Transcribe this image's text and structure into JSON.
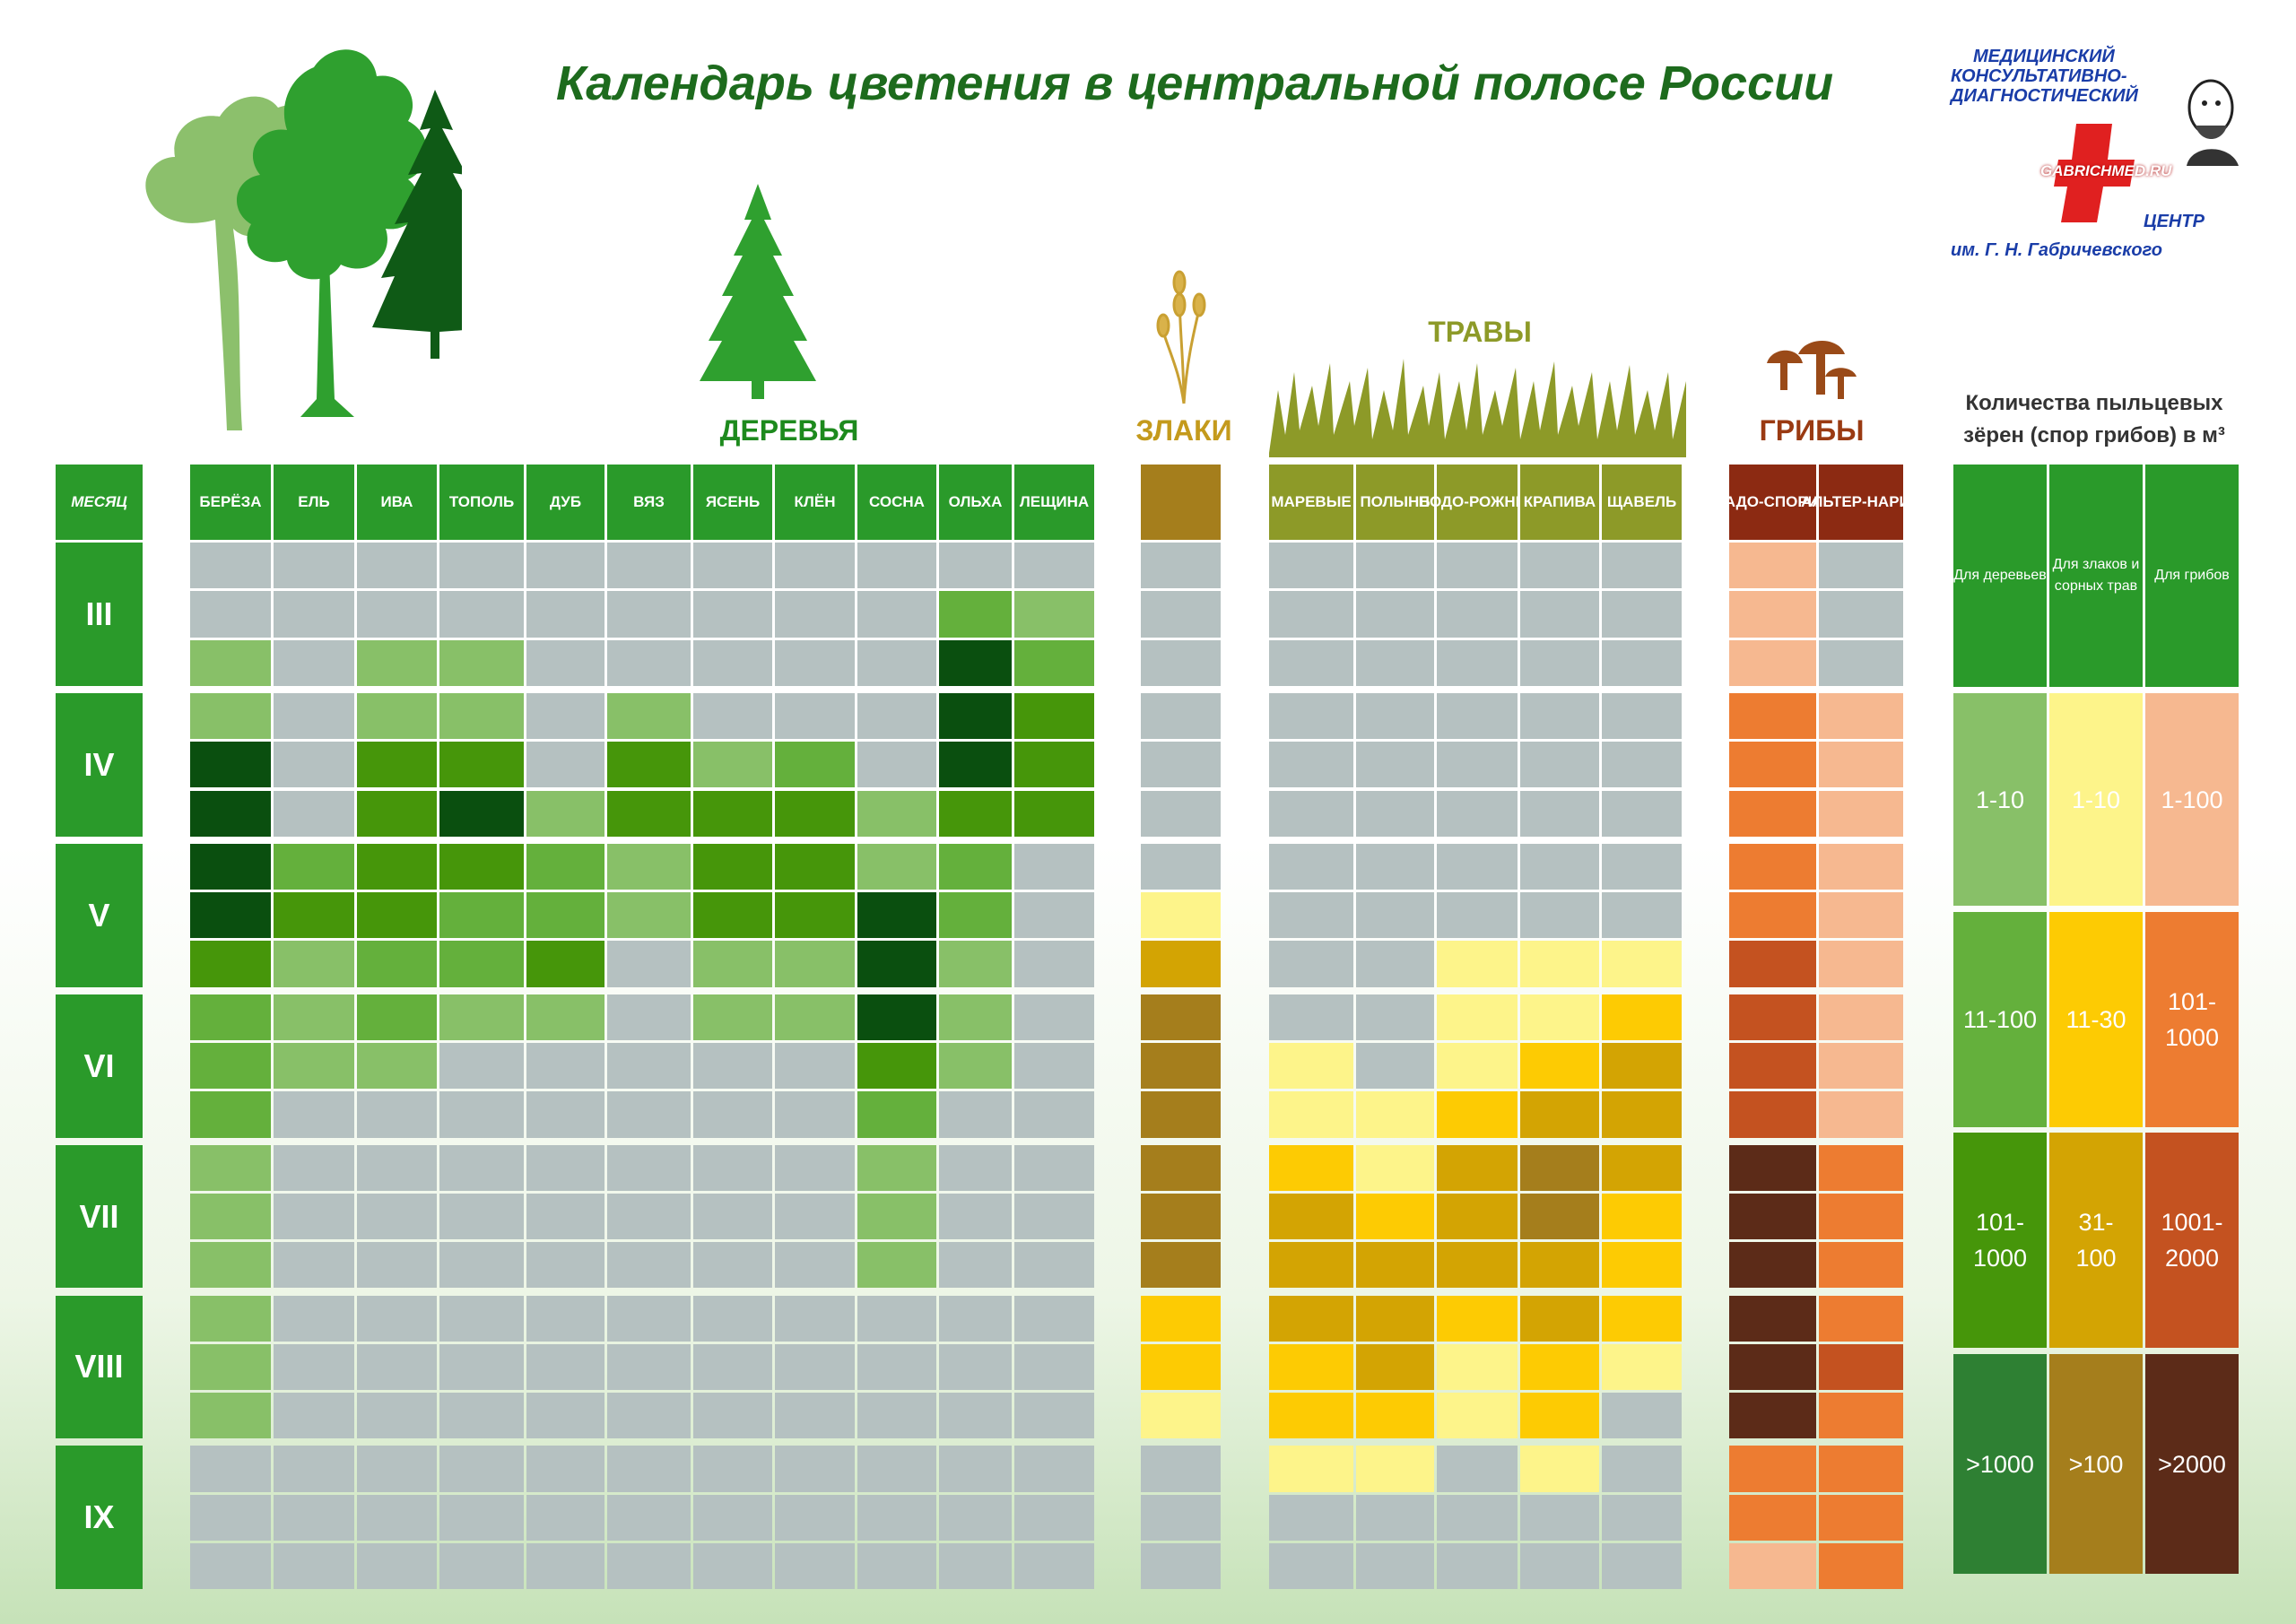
{
  "title": "Календарь цветения в центральной полосе России",
  "logo": {
    "line1": "МЕДИЦИНСКИЙ",
    "line2": "КОНСУЛЬТАТИВНО-",
    "line3": "ДИАГНОСТИЧЕСКИЙ",
    "site": "GABRICHMED.RU",
    "line4": "ЦЕНТР",
    "line5": "им. Г. Н. Габричевского"
  },
  "groups": {
    "trees": "ДЕРЕВЬЯ",
    "cereals": "ЗЛАКИ",
    "grasses": "ТРАВЫ",
    "fungi": "ГРИБЫ"
  },
  "month_header": "МЕСЯЦ",
  "months": [
    "III",
    "IV",
    "V",
    "VI",
    "VII",
    "VIII",
    "IX"
  ],
  "legend": {
    "title_line1": "Количества пыльцевых",
    "title_line2": "зёрен (спор грибов) в м³",
    "headers": [
      "Для деревьев",
      "Для злаков и сорных трав",
      "Для грибов"
    ],
    "rows": [
      [
        "1-10",
        "1-10",
        "1-100"
      ],
      [
        "11-100",
        "11-30",
        "101-\n1000"
      ],
      [
        "101-\n1000",
        "31-\n100",
        "1001-\n2000"
      ],
      [
        ">1000",
        ">100",
        ">2000"
      ]
    ]
  },
  "colors": {
    "none": "#b5c1c1",
    "tree": [
      "#b5c1c1",
      "#88c068",
      "#64b03c",
      "#46960a",
      "#0a4f0f"
    ],
    "herb": [
      "#b5c1c1",
      "#fdf48a",
      "#fdcb03",
      "#d3a403",
      "#a57e1c"
    ],
    "fungus": [
      "#b5c1c1",
      "#f6b890",
      "#ed7c31",
      "#c45220",
      "#5c2b18"
    ],
    "legend_tree": [
      "#88c068",
      "#64b03c",
      "#46960a",
      "#2e8033"
    ],
    "legend_herb": [
      "#fdf48a",
      "#fdcb03",
      "#d3a403",
      "#a57e1c"
    ],
    "legend_fungus": [
      "#f6b890",
      "#ed7c31",
      "#c45220",
      "#5c2b18"
    ],
    "header_green": "#2a9a2a",
    "header_cereal": "#a57e1c",
    "header_grass": "#8d9a28",
    "header_fungus": "#8c2a12",
    "title": "#1d6b1d"
  },
  "chart_data": {
    "type": "heatmap",
    "title": "Календарь цветения в центральной полосе России",
    "x_axis": "periods (3 per month)",
    "months": [
      "III",
      "IV",
      "V",
      "VI",
      "VII",
      "VIII",
      "IX"
    ],
    "levels_note": "0 = none; 1..4 = concentration class per legend",
    "series": [
      {
        "group": "trees",
        "name": "БЕРЁЗА",
        "levels": [
          0,
          0,
          1,
          1,
          4,
          4,
          4,
          4,
          3,
          2,
          2,
          2,
          1,
          1,
          1,
          1,
          1,
          1,
          0,
          0,
          0
        ]
      },
      {
        "group": "trees",
        "name": "ЕЛЬ",
        "levels": [
          0,
          0,
          0,
          0,
          0,
          0,
          2,
          3,
          1,
          1,
          1,
          0,
          0,
          0,
          0,
          0,
          0,
          0,
          0,
          0,
          0
        ]
      },
      {
        "group": "trees",
        "name": "ИВА",
        "levels": [
          0,
          0,
          1,
          1,
          3,
          3,
          3,
          3,
          2,
          2,
          1,
          0,
          0,
          0,
          0,
          0,
          0,
          0,
          0,
          0,
          0
        ]
      },
      {
        "group": "trees",
        "name": "ТОПОЛЬ",
        "levels": [
          0,
          0,
          1,
          1,
          3,
          4,
          3,
          2,
          2,
          1,
          0,
          0,
          0,
          0,
          0,
          0,
          0,
          0,
          0,
          0,
          0
        ]
      },
      {
        "group": "trees",
        "name": "ДУБ",
        "levels": [
          0,
          0,
          0,
          0,
          0,
          1,
          2,
          2,
          3,
          1,
          0,
          0,
          0,
          0,
          0,
          0,
          0,
          0,
          0,
          0,
          0
        ]
      },
      {
        "group": "trees",
        "name": "ВЯЗ",
        "levels": [
          0,
          0,
          0,
          1,
          3,
          3,
          1,
          1,
          0,
          0,
          0,
          0,
          0,
          0,
          0,
          0,
          0,
          0,
          0,
          0,
          0
        ]
      },
      {
        "group": "trees",
        "name": "ЯСЕНЬ",
        "levels": [
          0,
          0,
          0,
          0,
          1,
          3,
          3,
          3,
          1,
          1,
          0,
          0,
          0,
          0,
          0,
          0,
          0,
          0,
          0,
          0,
          0
        ]
      },
      {
        "group": "trees",
        "name": "КЛЁН",
        "levels": [
          0,
          0,
          0,
          0,
          2,
          3,
          3,
          3,
          1,
          1,
          0,
          0,
          0,
          0,
          0,
          0,
          0,
          0,
          0,
          0,
          0
        ]
      },
      {
        "group": "trees",
        "name": "СОСНА",
        "levels": [
          0,
          0,
          0,
          0,
          0,
          1,
          1,
          4,
          4,
          4,
          3,
          2,
          1,
          1,
          1,
          0,
          0,
          0,
          0,
          0,
          0
        ]
      },
      {
        "group": "trees",
        "name": "ОЛЬХА",
        "levels": [
          0,
          2,
          4,
          4,
          4,
          3,
          2,
          2,
          1,
          1,
          1,
          0,
          0,
          0,
          0,
          0,
          0,
          0,
          0,
          0,
          0
        ]
      },
      {
        "group": "trees",
        "name": "ЛЕЩИНА",
        "levels": [
          0,
          1,
          2,
          3,
          3,
          3,
          0,
          0,
          0,
          0,
          0,
          0,
          0,
          0,
          0,
          0,
          0,
          0,
          0,
          0,
          0
        ]
      },
      {
        "group": "cereals",
        "name": "ЗЛАКИ",
        "levels": [
          0,
          0,
          0,
          0,
          0,
          0,
          0,
          1,
          3,
          4,
          4,
          4,
          4,
          4,
          4,
          2,
          2,
          1,
          0,
          0,
          0
        ]
      },
      {
        "group": "grasses",
        "name": "МАРЕВЫЕ",
        "levels": [
          0,
          0,
          0,
          0,
          0,
          0,
          0,
          0,
          0,
          0,
          1,
          1,
          2,
          3,
          3,
          3,
          2,
          2,
          1,
          0,
          0
        ]
      },
      {
        "group": "grasses",
        "name": "ПОЛЫНЬ",
        "levels": [
          0,
          0,
          0,
          0,
          0,
          0,
          0,
          0,
          0,
          0,
          0,
          1,
          1,
          2,
          3,
          3,
          3,
          2,
          1,
          0,
          0
        ]
      },
      {
        "group": "grasses",
        "name": "ПОДОРОЖНИК",
        "levels": [
          0,
          0,
          0,
          0,
          0,
          0,
          0,
          0,
          1,
          1,
          1,
          2,
          3,
          3,
          3,
          2,
          1,
          1,
          0,
          0,
          0
        ]
      },
      {
        "group": "grasses",
        "name": "КРАПИВА",
        "levels": [
          0,
          0,
          0,
          0,
          0,
          0,
          0,
          0,
          1,
          1,
          2,
          3,
          4,
          4,
          3,
          3,
          2,
          2,
          1,
          0,
          0
        ]
      },
      {
        "group": "grasses",
        "name": "ЩАВЕЛЬ",
        "levels": [
          0,
          0,
          0,
          0,
          0,
          0,
          0,
          0,
          1,
          2,
          3,
          3,
          3,
          2,
          2,
          2,
          1,
          0,
          0,
          0,
          0
        ]
      },
      {
        "group": "fungi",
        "name": "КЛАДО-СПОРИУМ",
        "levels": [
          1,
          1,
          1,
          2,
          2,
          2,
          2,
          2,
          3,
          3,
          3,
          3,
          4,
          4,
          4,
          4,
          4,
          4,
          2,
          2,
          1
        ]
      },
      {
        "group": "fungi",
        "name": "АЛЬТЕР-НАРИЯ",
        "levels": [
          0,
          0,
          0,
          1,
          1,
          1,
          1,
          1,
          1,
          1,
          1,
          1,
          2,
          2,
          2,
          2,
          3,
          2,
          2,
          2,
          2
        ]
      }
    ]
  }
}
